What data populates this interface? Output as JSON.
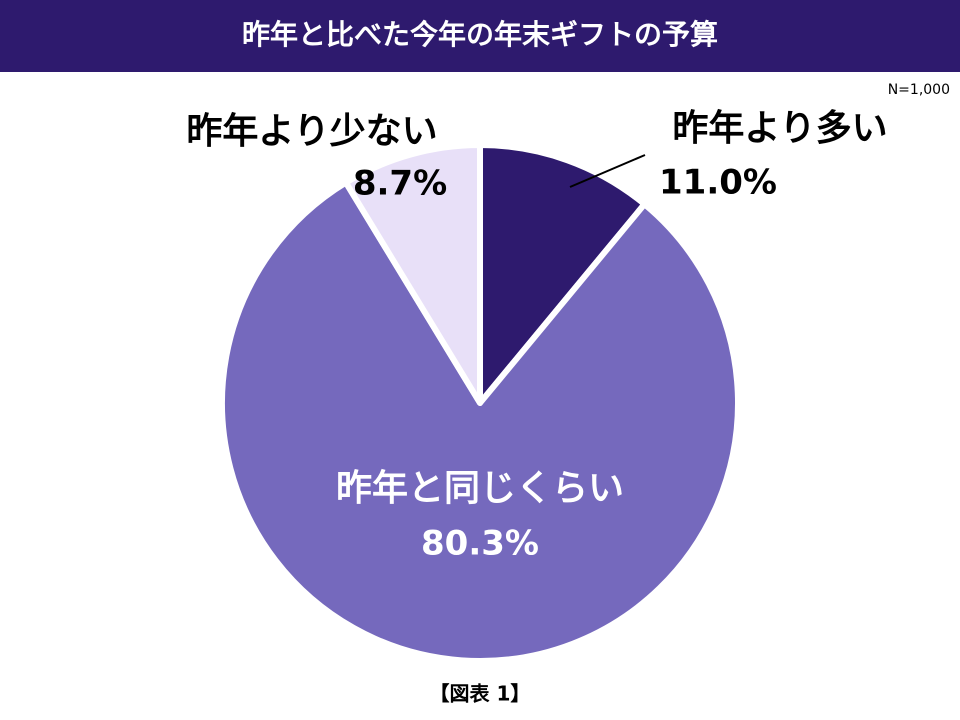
{
  "chart_data": {
    "type": "pie",
    "title": "昨年と比べた今年の年末ギフトの予算",
    "note": "N=1,000",
    "caption": "【図表 1】",
    "categories": [
      "昨年より多い",
      "昨年と同じくらい",
      "昨年より少ない"
    ],
    "values": [
      11.0,
      80.3,
      8.7
    ],
    "value_labels": [
      "11.0%",
      "80.3%",
      "8.7%"
    ],
    "colors": [
      "#2e1a6e",
      "#7569bd",
      "#e8e0f8"
    ]
  }
}
